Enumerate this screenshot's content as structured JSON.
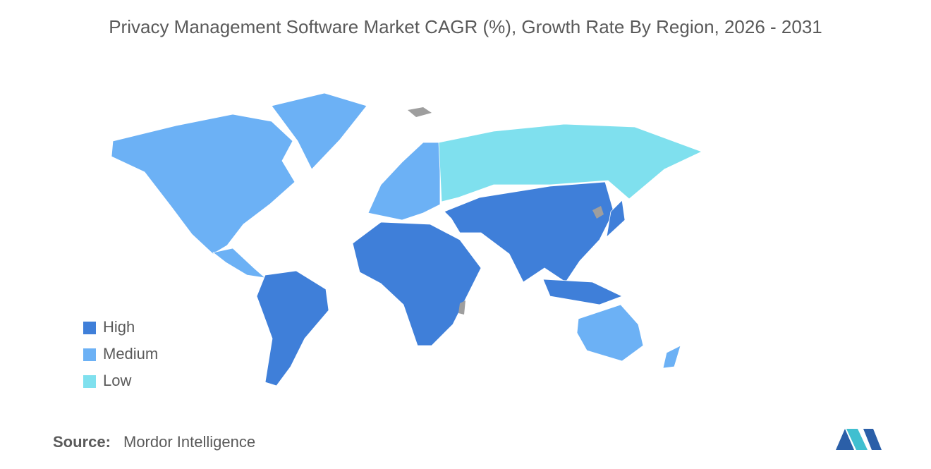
{
  "title": "Privacy Management Software Market CAGR (%), Growth Rate By Region, 2026 - 2031",
  "legend": [
    {
      "label": "High",
      "color": "#3f7fd9"
    },
    {
      "label": "Medium",
      "color": "#6cb1f5"
    },
    {
      "label": "Low",
      "color": "#7fe0ee"
    }
  ],
  "source": {
    "label": "Source:",
    "text": "Mordor Intelligence"
  }
}
